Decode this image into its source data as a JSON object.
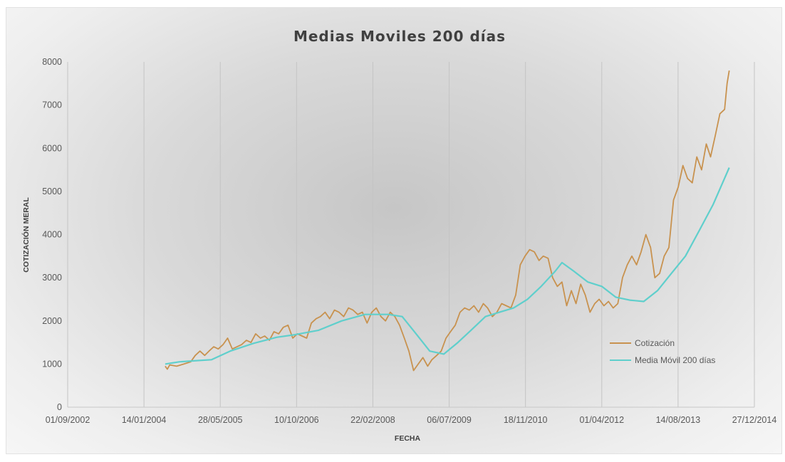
{
  "chart_data": {
    "type": "line",
    "title": "Medias Moviles 200 días",
    "xlabel": "FECHA",
    "ylabel": "COTIZACIÓN MERAL",
    "x_ticks": [
      "01/09/2002",
      "14/01/2004",
      "28/05/2005",
      "10/10/2006",
      "22/02/2008",
      "06/07/2009",
      "18/11/2010",
      "01/04/2012",
      "14/08/2013",
      "27/12/2014"
    ],
    "y_ticks": [
      0,
      1000,
      2000,
      3000,
      4000,
      5000,
      6000,
      7000,
      8000
    ],
    "ylim": [
      0,
      8000
    ],
    "xlim": [
      "2002-09-01",
      "2014-12-27"
    ],
    "grid": "vertical",
    "legend_position": "right",
    "colors": {
      "Cotización": "#c8924f",
      "Media Móvil 200 días": "#5fcfcc"
    },
    "series": [
      {
        "name": "Cotización",
        "color": "#c8924f",
        "x": [
          "2004-06-01",
          "2004-06-15",
          "2004-07-01",
          "2004-08-15",
          "2004-10-01",
          "2004-11-15",
          "2004-12-15",
          "2005-01-15",
          "2005-02-15",
          "2005-03-15",
          "2005-04-15",
          "2005-05-15",
          "2005-06-15",
          "2005-07-15",
          "2005-08-15",
          "2005-09-15",
          "2005-10-15",
          "2005-11-15",
          "2005-12-15",
          "2006-01-15",
          "2006-02-15",
          "2006-03-15",
          "2006-04-15",
          "2006-05-15",
          "2006-06-15",
          "2006-07-15",
          "2006-08-15",
          "2006-09-15",
          "2006-10-15",
          "2006-11-15",
          "2006-12-15",
          "2007-01-15",
          "2007-02-15",
          "2007-03-15",
          "2007-04-15",
          "2007-05-15",
          "2007-06-15",
          "2007-07-15",
          "2007-08-15",
          "2007-09-15",
          "2007-10-15",
          "2007-11-15",
          "2007-12-15",
          "2008-01-15",
          "2008-02-15",
          "2008-03-15",
          "2008-04-15",
          "2008-05-15",
          "2008-06-15",
          "2008-07-15",
          "2008-08-15",
          "2008-09-15",
          "2008-10-15",
          "2008-11-15",
          "2008-12-15",
          "2009-01-15",
          "2009-02-15",
          "2009-03-15",
          "2009-04-15",
          "2009-05-15",
          "2009-06-15",
          "2009-07-15",
          "2009-08-15",
          "2009-09-15",
          "2009-10-15",
          "2009-11-15",
          "2009-12-15",
          "2010-01-15",
          "2010-02-15",
          "2010-03-15",
          "2010-04-15",
          "2010-05-15",
          "2010-06-15",
          "2010-07-15",
          "2010-08-15",
          "2010-09-15",
          "2010-10-15",
          "2010-11-15",
          "2010-12-15",
          "2011-01-15",
          "2011-02-15",
          "2011-03-15",
          "2011-04-15",
          "2011-05-15",
          "2011-06-15",
          "2011-07-15",
          "2011-08-15",
          "2011-09-15",
          "2011-10-15",
          "2011-11-15",
          "2011-12-15",
          "2012-01-15",
          "2012-02-15",
          "2012-03-15",
          "2012-04-15",
          "2012-05-15",
          "2012-06-15",
          "2012-07-15",
          "2012-08-15",
          "2012-09-15",
          "2012-10-15",
          "2012-11-15",
          "2012-12-15",
          "2013-01-15",
          "2013-02-15",
          "2013-03-15",
          "2013-04-15",
          "2013-05-15",
          "2013-06-15",
          "2013-07-15",
          "2013-08-15",
          "2013-09-15",
          "2013-10-15",
          "2013-11-15",
          "2013-12-15",
          "2014-01-15",
          "2014-02-15",
          "2014-03-15",
          "2014-04-15",
          "2014-05-15",
          "2014-06-15",
          "2014-07-01",
          "2014-07-15"
        ],
        "y": [
          950,
          880,
          980,
          950,
          1000,
          1050,
          1200,
          1300,
          1200,
          1300,
          1400,
          1350,
          1450,
          1600,
          1350,
          1400,
          1450,
          1550,
          1500,
          1700,
          1600,
          1650,
          1550,
          1750,
          1700,
          1850,
          1900,
          1600,
          1700,
          1650,
          1600,
          1950,
          2050,
          2100,
          2200,
          2050,
          2250,
          2200,
          2100,
          2300,
          2250,
          2150,
          2200,
          1950,
          2200,
          2300,
          2100,
          2000,
          2200,
          2100,
          1900,
          1600,
          1300,
          850,
          1000,
          1150,
          950,
          1100,
          1200,
          1300,
          1600,
          1750,
          1900,
          2200,
          2300,
          2250,
          2350,
          2200,
          2400,
          2300,
          2100,
          2200,
          2400,
          2350,
          2300,
          2600,
          3300,
          3500,
          3650,
          3600,
          3400,
          3500,
          3450,
          3000,
          2800,
          2900,
          2350,
          2700,
          2400,
          2850,
          2600,
          2200,
          2400,
          2500,
          2350,
          2450,
          2300,
          2400,
          3000,
          3300,
          3500,
          3300,
          3600,
          4000,
          3700,
          3000,
          3100,
          3500,
          3700,
          4800,
          5100,
          5600,
          5300,
          5200,
          5800,
          5500,
          6100,
          5800,
          6300,
          6800,
          6900,
          7500,
          7800
        ]
      },
      {
        "name": "Media Móvil 200 días",
        "color": "#5fcfcc",
        "x": [
          "2004-06-01",
          "2004-09-01",
          "2005-01-01",
          "2005-04-01",
          "2005-08-01",
          "2006-01-01",
          "2006-06-01",
          "2006-10-01",
          "2007-03-01",
          "2007-08-01",
          "2008-01-01",
          "2008-06-01",
          "2008-09-01",
          "2008-12-01",
          "2009-03-01",
          "2009-06-01",
          "2009-09-01",
          "2009-12-01",
          "2010-03-01",
          "2010-06-01",
          "2010-09-01",
          "2010-12-01",
          "2011-03-01",
          "2011-06-01",
          "2011-07-15",
          "2011-10-01",
          "2012-01-01",
          "2012-04-01",
          "2012-07-01",
          "2012-10-01",
          "2013-01-01",
          "2013-04-01",
          "2013-07-01",
          "2013-10-01",
          "2014-01-01",
          "2014-04-01",
          "2014-07-15"
        ],
        "y": [
          1000,
          1050,
          1080,
          1100,
          1300,
          1480,
          1620,
          1680,
          1780,
          2000,
          2150,
          2150,
          2100,
          1700,
          1300,
          1230,
          1500,
          1800,
          2100,
          2200,
          2300,
          2500,
          2800,
          3150,
          3350,
          3150,
          2900,
          2800,
          2550,
          2480,
          2450,
          2700,
          3100,
          3500,
          4100,
          4700,
          5550
        ]
      }
    ]
  }
}
